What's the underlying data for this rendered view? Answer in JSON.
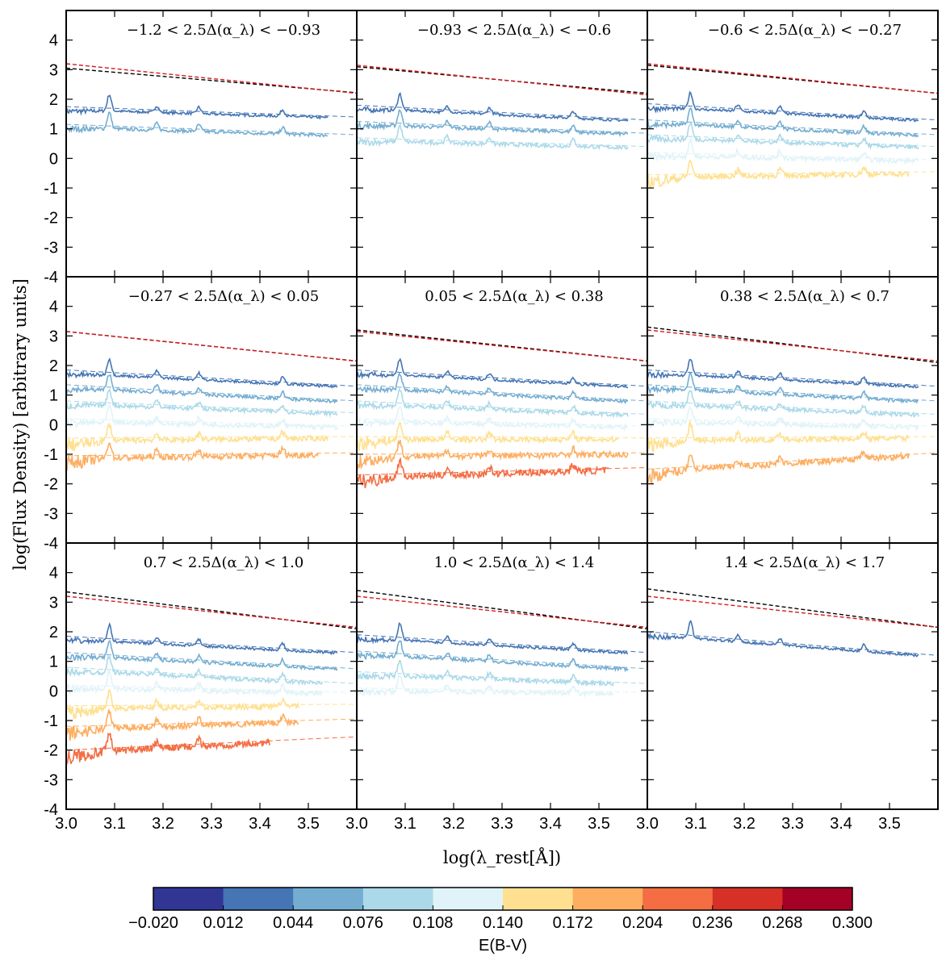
{
  "chart_data": {
    "type": "line",
    "ylabel": "log(Flux Density) [arbitrary units]",
    "xlabel": "log(λ_rest[Å])",
    "xlim": [
      3.0,
      3.6
    ],
    "ylim": [
      -4,
      5
    ],
    "x_ticks": [
      "3.0",
      "3.1",
      "3.2",
      "3.3",
      "3.4",
      "3.5"
    ],
    "y_ticks": [
      "-4",
      "-3",
      "-2",
      "-1",
      "0",
      "1",
      "2",
      "3",
      "4"
    ],
    "reference_lines": [
      {
        "color": "#000000",
        "style": "dashed"
      },
      {
        "color": "#d7191c",
        "style": "dashed"
      }
    ],
    "panels": [
      {
        "title": "−1.2 < 2.5Δ(α_λ) < −0.93",
        "ref_black": [
          [
            3.0,
            3.05
          ],
          [
            3.6,
            2.22
          ]
        ],
        "ref_red": [
          [
            3.0,
            3.2
          ],
          [
            3.6,
            2.2
          ]
        ],
        "spectra": [
          {
            "ebv_bin": 1,
            "level": [
              1.65,
              1.35
            ],
            "xmax": 3.54
          },
          {
            "ebv_bin": 2,
            "level": [
              1.05,
              0.75
            ],
            "xmax": 3.54
          }
        ]
      },
      {
        "title": "−0.93 < 2.5Δ(α_λ) < −0.6",
        "ref_black": [
          [
            3.0,
            3.1
          ],
          [
            3.6,
            2.2
          ]
        ],
        "ref_red": [
          [
            3.0,
            3.15
          ],
          [
            3.6,
            2.15
          ]
        ],
        "spectra": [
          {
            "ebv_bin": 1,
            "level": [
              1.7,
              1.25
            ],
            "xmax": 3.56
          },
          {
            "ebv_bin": 2,
            "level": [
              1.15,
              0.8
            ],
            "xmax": 3.56
          },
          {
            "ebv_bin": 3,
            "level": [
              0.6,
              0.35
            ],
            "xmax": 3.56
          }
        ]
      },
      {
        "title": "−0.6 < 2.5Δ(α_λ) < −0.27",
        "ref_black": [
          [
            3.0,
            3.15
          ],
          [
            3.6,
            2.2
          ]
        ],
        "ref_red": [
          [
            3.0,
            3.2
          ],
          [
            3.6,
            2.2
          ]
        ],
        "spectra": [
          {
            "ebv_bin": 1,
            "level": [
              1.75,
              1.25
            ],
            "xmax": 3.56
          },
          {
            "ebv_bin": 2,
            "level": [
              1.2,
              0.75
            ],
            "xmax": 3.56
          },
          {
            "ebv_bin": 3,
            "level": [
              0.7,
              0.35
            ],
            "xmax": 3.56
          },
          {
            "ebv_bin": 4,
            "level": [
              0.1,
              -0.1
            ],
            "xmax": 3.56
          },
          {
            "ebv_bin": 5,
            "level": [
              -0.65,
              -0.5
            ],
            "xmax": 3.54
          }
        ]
      },
      {
        "title": "−0.27 < 2.5Δ(α_λ) < 0.05",
        "ref_black": [
          [
            3.0,
            3.15
          ],
          [
            3.6,
            2.15
          ]
        ],
        "ref_red": [
          [
            3.0,
            3.15
          ],
          [
            3.6,
            2.15
          ]
        ],
        "spectra": [
          {
            "ebv_bin": 1,
            "level": [
              1.75,
              1.25
            ],
            "xmax": 3.56
          },
          {
            "ebv_bin": 2,
            "level": [
              1.25,
              0.75
            ],
            "xmax": 3.56
          },
          {
            "ebv_bin": 3,
            "level": [
              0.7,
              0.35
            ],
            "xmax": 3.56
          },
          {
            "ebv_bin": 4,
            "level": [
              0.1,
              -0.1
            ],
            "xmax": 3.56
          },
          {
            "ebv_bin": 5,
            "level": [
              -0.55,
              -0.45
            ],
            "xmax": 3.54
          },
          {
            "ebv_bin": 6,
            "level": [
              -1.15,
              -1.0
            ],
            "xmax": 3.52
          }
        ]
      },
      {
        "title": "0.05 < 2.5Δ(α_λ) < 0.38",
        "ref_black": [
          [
            3.0,
            3.2
          ],
          [
            3.6,
            2.15
          ]
        ],
        "ref_red": [
          [
            3.0,
            3.15
          ],
          [
            3.6,
            2.15
          ]
        ],
        "spectra": [
          {
            "ebv_bin": 1,
            "level": [
              1.75,
              1.25
            ],
            "xmax": 3.56
          },
          {
            "ebv_bin": 2,
            "level": [
              1.25,
              0.75
            ],
            "xmax": 3.56
          },
          {
            "ebv_bin": 3,
            "level": [
              0.7,
              0.3
            ],
            "xmax": 3.56
          },
          {
            "ebv_bin": 4,
            "level": [
              0.1,
              -0.1
            ],
            "xmax": 3.56
          },
          {
            "ebv_bin": 5,
            "level": [
              -0.5,
              -0.5
            ],
            "xmax": 3.54
          },
          {
            "ebv_bin": 6,
            "level": [
              -1.1,
              -1.0
            ],
            "xmax": 3.56
          },
          {
            "ebv_bin": 7,
            "level": [
              -1.8,
              -1.5
            ],
            "xmax": 3.52
          }
        ]
      },
      {
        "title": "0.38 < 2.5Δ(α_λ) < 0.7",
        "ref_black": [
          [
            3.0,
            3.3
          ],
          [
            3.6,
            2.1
          ]
        ],
        "ref_red": [
          [
            3.0,
            3.2
          ],
          [
            3.6,
            2.15
          ]
        ],
        "spectra": [
          {
            "ebv_bin": 1,
            "level": [
              1.75,
              1.25
            ],
            "xmax": 3.56
          },
          {
            "ebv_bin": 2,
            "level": [
              1.25,
              0.75
            ],
            "xmax": 3.56
          },
          {
            "ebv_bin": 3,
            "level": [
              0.7,
              0.3
            ],
            "xmax": 3.56
          },
          {
            "ebv_bin": 4,
            "level": [
              0.1,
              -0.1
            ],
            "xmax": 3.56
          },
          {
            "ebv_bin": 5,
            "level": [
              -0.55,
              -0.45
            ],
            "xmax": 3.54
          },
          {
            "ebv_bin": 6,
            "level": [
              -1.6,
              -1.0
            ],
            "xmax": 3.54
          }
        ]
      },
      {
        "title": "0.7 < 2.5Δ(α_λ) < 1.0",
        "ref_black": [
          [
            3.0,
            3.35
          ],
          [
            3.6,
            2.1
          ]
        ],
        "ref_red": [
          [
            3.0,
            3.2
          ],
          [
            3.6,
            2.15
          ]
        ],
        "spectra": [
          {
            "ebv_bin": 1,
            "level": [
              1.75,
              1.25
            ],
            "xmax": 3.56
          },
          {
            "ebv_bin": 2,
            "level": [
              1.2,
              0.7
            ],
            "xmax": 3.56
          },
          {
            "ebv_bin": 3,
            "level": [
              0.7,
              0.2
            ],
            "xmax": 3.53
          },
          {
            "ebv_bin": 4,
            "level": [
              0.1,
              -0.1
            ],
            "xmax": 3.53
          },
          {
            "ebv_bin": 5,
            "level": [
              -0.6,
              -0.5
            ],
            "xmax": 3.48
          },
          {
            "ebv_bin": 6,
            "level": [
              -1.3,
              -1.0
            ],
            "xmax": 3.48
          },
          {
            "ebv_bin": 7,
            "level": [
              -2.1,
              -1.6
            ],
            "xmax": 3.42
          }
        ]
      },
      {
        "title": "1.0 < 2.5Δ(α_λ) < 1.4",
        "ref_black": [
          [
            3.0,
            3.4
          ],
          [
            3.6,
            2.1
          ]
        ],
        "ref_red": [
          [
            3.0,
            3.2
          ],
          [
            3.6,
            2.15
          ]
        ],
        "spectra": [
          {
            "ebv_bin": 1,
            "level": [
              1.8,
              1.25
            ],
            "xmax": 3.56
          },
          {
            "ebv_bin": 2,
            "level": [
              1.25,
              0.7
            ],
            "xmax": 3.56
          },
          {
            "ebv_bin": 3,
            "level": [
              0.55,
              0.2
            ],
            "xmax": 3.53
          },
          {
            "ebv_bin": 4,
            "level": [
              0.0,
              -0.1
            ],
            "xmax": 3.53
          }
        ]
      },
      {
        "title": "1.4 < 2.5Δ(α_λ) < 1.7",
        "ref_black": [
          [
            3.0,
            3.45
          ],
          [
            3.6,
            2.15
          ]
        ],
        "ref_red": [
          [
            3.0,
            3.2
          ],
          [
            3.6,
            2.15
          ]
        ],
        "spectra": [
          {
            "ebv_bin": 1,
            "level": [
              1.9,
              1.15
            ],
            "xmax": 3.56
          }
        ]
      }
    ],
    "colorbar": {
      "label": "E(B-V)",
      "tick_labels": [
        "−0.020",
        "0.012",
        "0.044",
        "0.076",
        "0.108",
        "0.140",
        "0.172",
        "0.204",
        "0.236",
        "0.268",
        "0.300"
      ],
      "colors": [
        "#313695",
        "#4575b4",
        "#74add1",
        "#abd9e9",
        "#e0f3f8",
        "#fee090",
        "#fdae61",
        "#f46d43",
        "#d73027",
        "#a50026"
      ]
    }
  }
}
